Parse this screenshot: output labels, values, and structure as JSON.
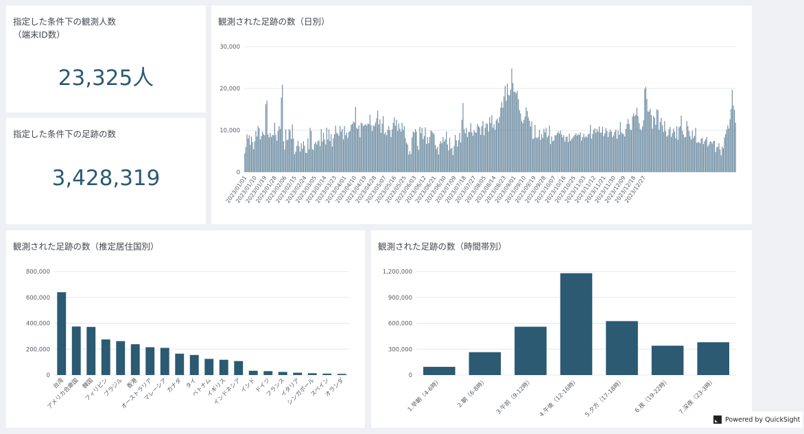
{
  "kpi_users": {
    "title_line1": "指定した条件下の観測人数",
    "title_line2": "（端末ID数）",
    "value": "23,325人"
  },
  "kpi_footprints": {
    "title": "指定した条件下の足跡の数",
    "value": "3,428,319"
  },
  "daily_chart": {
    "title": "観測された足跡の数（日別）"
  },
  "country_chart": {
    "title": "観測された足跡の数（推定居住国別）"
  },
  "time_chart": {
    "title": "観測された足跡の数（時間帯別）"
  },
  "badge": {
    "label": "Powered by QuickSight"
  },
  "colors": {
    "bar": "#2b5a72",
    "daily_bar": "#6a8aa0",
    "grid": "#e4e7ea",
    "axis_text": "#555b63"
  },
  "chart_data": [
    {
      "type": "bar",
      "title": "観測された足跡の数（日別）",
      "ylim": [
        0,
        30000
      ],
      "y_ticks": [
        "0",
        "10,000",
        "20,000",
        "30,000"
      ],
      "x_tick_labels": [
        "2023/01/01",
        "2023/01/10",
        "2023/01/19",
        "2023/01/28",
        "2023/02/06",
        "2023/02/15",
        "2023/02/24",
        "2023/03/05",
        "2023/03/14",
        "2023/03/23",
        "2023/04/01",
        "2023/04/10",
        "2023/04/19",
        "2023/04/28",
        "2023/05/07",
        "2023/05/16",
        "2023/05/25",
        "2023/06/03",
        "2023/06/12",
        "2023/06/21",
        "2023/06/30",
        "2023/07/09",
        "2023/07/18",
        "2023/07/27",
        "2023/08/05",
        "2023/08/14",
        "2023/08/23",
        "2023/09/01",
        "2023/09/10",
        "2023/09/19",
        "2023/09/28",
        "2023/10/07",
        "2023/10/16",
        "2023/10/25",
        "2023/11/03",
        "2023/11/12",
        "2023/11/21",
        "2023/11/30",
        "2023/12/09",
        "2023/12/18",
        "2023/12/27"
      ],
      "x_start": "2023/01/01",
      "values": [
        4500,
        6000,
        9000,
        8000,
        8800,
        6500,
        8500,
        7200,
        5500,
        7400,
        9800,
        8500,
        11000,
        10500,
        7800,
        8600,
        9700,
        9100,
        8800,
        16200,
        17100,
        9000,
        8300,
        9400,
        8400,
        8900,
        8800,
        11800,
        8900,
        7500,
        9800,
        11000,
        10300,
        17800,
        20900,
        7400,
        5400,
        10200,
        7600,
        7800,
        10300,
        9900,
        7900,
        11400,
        8000,
        4300,
        4900,
        6300,
        7500,
        6200,
        4900,
        6900,
        5600,
        7400,
        6300,
        4600,
        4600,
        8100,
        5500,
        10600,
        9800,
        5500,
        5300,
        6800,
        7200,
        6600,
        7400,
        7600,
        6200,
        10300,
        7300,
        9400,
        7800,
        6600,
        10600,
        7800,
        10200,
        7400,
        9100,
        6100,
        8100,
        9100,
        11100,
        9400,
        9200,
        8700,
        11000,
        9700,
        10300,
        7800,
        11000,
        8800,
        9400,
        8200,
        9600,
        9800,
        11300,
        11500,
        12100,
        11800,
        15600,
        10600,
        10300,
        11200,
        8300,
        11800,
        11600,
        11000,
        11300,
        11400,
        11100,
        11600,
        11500,
        13700,
        11200,
        9800,
        11200,
        11000,
        11800,
        12900,
        14700,
        11400,
        12600,
        9400,
        11600,
        13400,
        9100,
        9500,
        8800,
        10100,
        11000,
        10000,
        8400,
        10200,
        11800,
        13100,
        11100,
        12500,
        9800,
        11600,
        10400,
        9700,
        11800,
        10100,
        11000,
        8100,
        7000,
        6600,
        4200,
        5000,
        4300,
        8300,
        9700,
        9400,
        10300,
        9700,
        6300,
        5300,
        10800,
        9300,
        10600,
        7900,
        8600,
        10700,
        6700,
        8400,
        6900,
        8400,
        10000,
        9700,
        9400,
        9000,
        6500,
        5500,
        6000,
        4200,
        6800,
        7400,
        6900,
        8400,
        7300,
        7800,
        9700,
        6600,
        5200,
        8200,
        5600,
        5800,
        4100,
        6300,
        8900,
        7600,
        6100,
        7600,
        9400,
        7100,
        12500,
        16500,
        10300,
        9300,
        10600,
        8400,
        9600,
        9600,
        11700,
        9500,
        8700,
        10000,
        9500,
        9400,
        11500,
        11000,
        10700,
        8900,
        11000,
        12200,
        8800,
        10600,
        11700,
        11500,
        9700,
        13100,
        11700,
        13600,
        10600,
        11400,
        10100,
        12400,
        12800,
        11800,
        13200,
        15400,
        16800,
        15400,
        18100,
        20600,
        17000,
        21200,
        18500,
        18300,
        19700,
        24800,
        21300,
        19200,
        19200,
        18800,
        19400,
        17400,
        14800,
        14000,
        12200,
        11700,
        12500,
        13300,
        15500,
        14600,
        13100,
        12300,
        10900,
        12100,
        7900,
        8100,
        11300,
        8300,
        8100,
        8400,
        10100,
        7700,
        9100,
        8200,
        10300,
        9500,
        10600,
        8300,
        8700,
        11100,
        6700,
        8500,
        7400,
        7600,
        8800,
        8800,
        9300,
        9700,
        9200,
        9900,
        9000,
        8300,
        8800,
        7300,
        8400,
        8500,
        7200,
        9200,
        7500,
        7900,
        8200,
        8600,
        8900,
        9300,
        8700,
        9100,
        8900,
        9500,
        7500,
        8400,
        9200,
        8300,
        8600,
        8300,
        9000,
        9200,
        11300,
        8000,
        9100,
        10100,
        10500,
        9400,
        10300,
        9700,
        10900,
        9400,
        9500,
        10800,
        8600,
        9300,
        10500,
        9800,
        8400,
        9600,
        10200,
        9700,
        8400,
        8800,
        9700,
        10200,
        8000,
        9900,
        8900,
        12000,
        9500,
        9200,
        9100,
        8500,
        10300,
        11500,
        12700,
        11500,
        10200,
        10000,
        13300,
        14000,
        13400,
        13700,
        15400,
        13400,
        11700,
        10300,
        10000,
        10900,
        12400,
        19900,
        20400,
        17500,
        14500,
        14500,
        15100,
        13600,
        10400,
        13400,
        13000,
        11300,
        15000,
        14800,
        10100,
        12000,
        13000,
        11200,
        9600,
        12200,
        9800,
        8500,
        8800,
        10200,
        10800,
        8400,
        9300,
        10400,
        9700,
        8100,
        10900,
        7700,
        10700,
        11000,
        13500,
        9900,
        9000,
        8300,
        8400,
        12200,
        11000,
        9800,
        8600,
        7800,
        9900,
        8200,
        8700,
        10600,
        7000,
        7100,
        7200,
        6900,
        8000,
        8200,
        6700,
        7400,
        7800,
        8400,
        6100,
        6600,
        7300,
        7300,
        6800,
        7400,
        7500,
        4800,
        5900,
        6100,
        6900,
        5400,
        4000,
        6100,
        5700,
        8300,
        9100,
        10200,
        11200,
        10400,
        12600,
        15100,
        19700,
        15900,
        14900,
        11800
      ]
    },
    {
      "type": "bar",
      "title": "観測された足跡の数（推定居住国別）",
      "ylim": [
        0,
        800000
      ],
      "y_ticks": [
        "0",
        "200,000",
        "400,000",
        "600,000",
        "800,000"
      ],
      "categories": [
        "台湾",
        "アメリカ合衆国",
        "韓国",
        "フィリピン",
        "ブラジル",
        "香港",
        "オーストラリア",
        "マレーシア",
        "カナダ",
        "タイ",
        "ベトナム",
        "イギリス",
        "インドネシア",
        "インド",
        "ドイツ",
        "フランス",
        "イタリア",
        "シンガポール",
        "スペイン",
        "オランダ"
      ],
      "values": [
        640000,
        375000,
        372000,
        275000,
        262000,
        238000,
        215000,
        210000,
        165000,
        155000,
        125000,
        118000,
        108000,
        33000,
        30000,
        24000,
        18000,
        14000,
        11000,
        9000
      ]
    },
    {
      "type": "bar",
      "title": "観測された足跡の数（時間帯別）",
      "ylim": [
        0,
        1200000
      ],
      "y_ticks": [
        "0",
        "300,000",
        "600,000",
        "900,000",
        "1,200,000"
      ],
      "categories": [
        "1.早朝（4-6時）",
        "2.朝（6-8時）",
        "3.午前（9-12時）",
        "4.午後（12-16時）",
        "5.夕方（17-18時）",
        "6.夜（19-22時）",
        "7.深夜（23-3時）"
      ],
      "values": [
        95000,
        265000,
        560000,
        1180000,
        625000,
        340000,
        380000
      ]
    }
  ]
}
